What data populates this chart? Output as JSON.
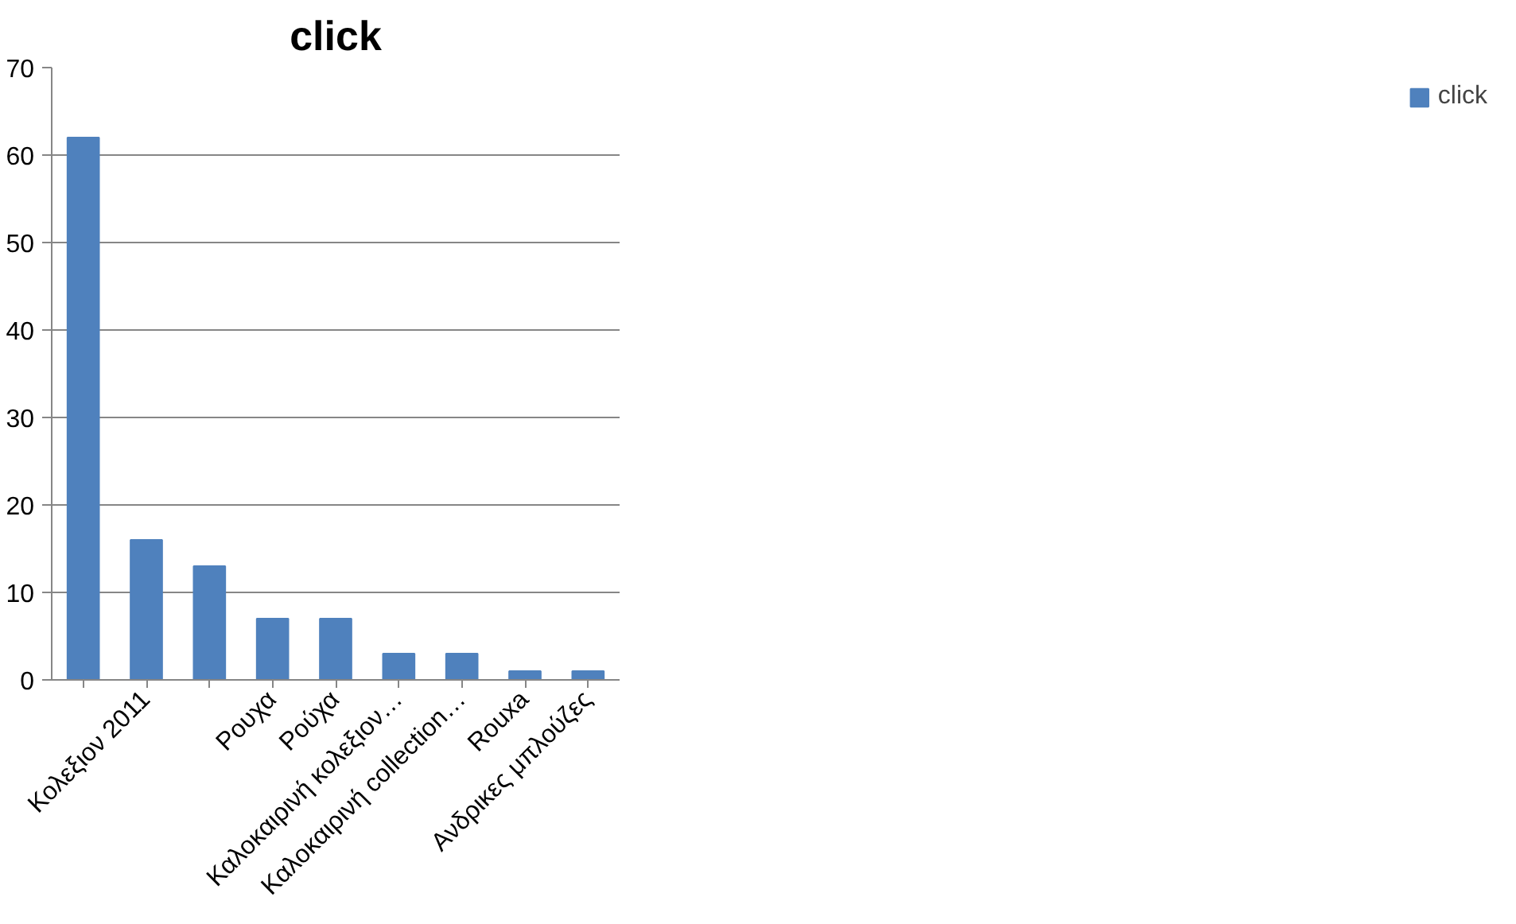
{
  "chart_data": {
    "type": "bar",
    "title": "click",
    "categories": [
      null,
      "Κολεξιον 2011",
      null,
      "Ρουχα",
      "Ρούχα",
      "Καλοκαιρινή κολεξιον…",
      "Καλοκαιρινή collection…",
      "Rouxa",
      "Ανδρικες μπλούζες"
    ],
    "series": [
      {
        "name": "click",
        "color": "#4f81bd",
        "values": [
          62,
          16,
          13,
          7,
          7,
          3,
          3,
          1,
          1
        ]
      }
    ],
    "ylim": [
      0,
      70
    ],
    "yticks": [
      0,
      10,
      20,
      30,
      40,
      50,
      60,
      70
    ],
    "grid": "y",
    "legend": "right"
  }
}
